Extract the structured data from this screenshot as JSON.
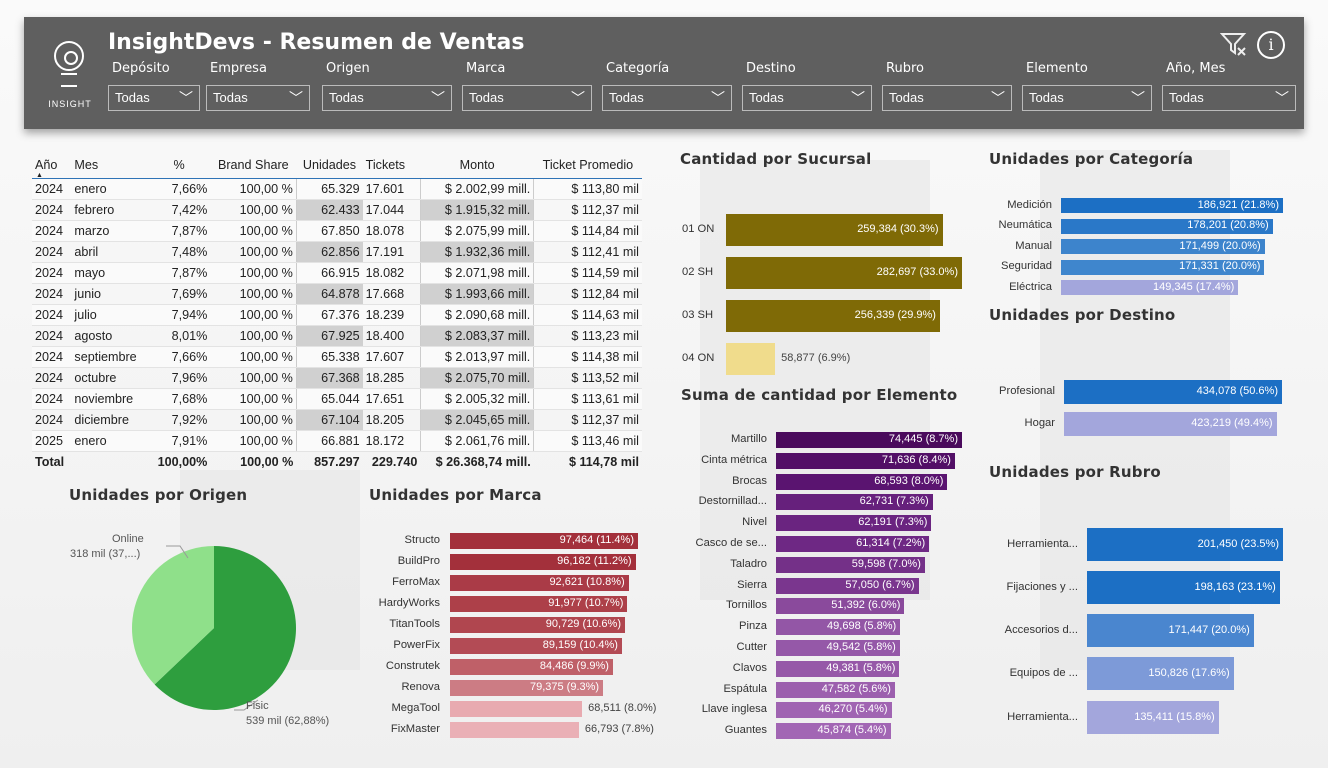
{
  "header": {
    "title": "InsightDevs - Resumen de Ventas",
    "logo_text": "INSIGHT",
    "icons": [
      "clear-filter-icon",
      "info-icon"
    ],
    "info_glyph": "i",
    "slicers": [
      {
        "label": "Depósito",
        "value": "Todas"
      },
      {
        "label": "Empresa",
        "value": "Todas"
      },
      {
        "label": "Origen",
        "value": "Todas"
      },
      {
        "label": "Marca",
        "value": "Todas"
      },
      {
        "label": "Categoría",
        "value": "Todas"
      },
      {
        "label": "Destino",
        "value": "Todas"
      },
      {
        "label": "Rubro",
        "value": "Todas"
      },
      {
        "label": "Elemento",
        "value": "Todas"
      },
      {
        "label": "Año, Mes",
        "value": "Todas"
      }
    ]
  },
  "table": {
    "columns": [
      "Año",
      "Mes",
      "%",
      "Brand Share",
      "Unidades",
      "Tickets",
      "Monto",
      "Ticket Promedio"
    ],
    "rows": [
      [
        "2024",
        "enero",
        "7,66%",
        "100,00 %",
        "65.329",
        "17.601",
        "$ 2.002,99 mill.",
        "$ 113,80 mil"
      ],
      [
        "2024",
        "febrero",
        "7,42%",
        "100,00 %",
        "62.433",
        "17.044",
        "$ 1.915,32 mill.",
        "$ 112,37 mil"
      ],
      [
        "2024",
        "marzo",
        "7,87%",
        "100,00 %",
        "67.850",
        "18.078",
        "$ 2.075,99 mill.",
        "$ 114,84 mil"
      ],
      [
        "2024",
        "abril",
        "7,48%",
        "100,00 %",
        "62.856",
        "17.191",
        "$ 1.932,36 mill.",
        "$ 112,41 mil"
      ],
      [
        "2024",
        "mayo",
        "7,87%",
        "100,00 %",
        "66.915",
        "18.082",
        "$ 2.071,98 mill.",
        "$ 114,59 mil"
      ],
      [
        "2024",
        "junio",
        "7,69%",
        "100,00 %",
        "64.878",
        "17.668",
        "$ 1.993,66 mill.",
        "$ 112,84 mil"
      ],
      [
        "2024",
        "julio",
        "7,94%",
        "100,00 %",
        "67.376",
        "18.239",
        "$ 2.090,68 mill.",
        "$ 114,63 mil"
      ],
      [
        "2024",
        "agosto",
        "8,01%",
        "100,00 %",
        "67.925",
        "18.400",
        "$ 2.083,37 mill.",
        "$ 113,23 mil"
      ],
      [
        "2024",
        "septiembre",
        "7,66%",
        "100,00 %",
        "65.338",
        "17.607",
        "$ 2.013,97 mill.",
        "$ 114,38 mil"
      ],
      [
        "2024",
        "octubre",
        "7,96%",
        "100,00 %",
        "67.368",
        "18.285",
        "$ 2.075,70 mill.",
        "$ 113,52 mil"
      ],
      [
        "2024",
        "noviembre",
        "7,68%",
        "100,00 %",
        "65.044",
        "17.651",
        "$ 2.005,32 mill.",
        "$ 113,61 mil"
      ],
      [
        "2024",
        "diciembre",
        "7,92%",
        "100,00 %",
        "67.104",
        "18.205",
        "$ 2.045,65 mill.",
        "$ 112,37 mil"
      ],
      [
        "2025",
        "enero",
        "7,91%",
        "100,00 %",
        "66.881",
        "18.172",
        "$ 2.061,76 mill.",
        "$ 113,46 mil"
      ]
    ],
    "total": [
      "Total",
      "",
      "100,00%",
      "100,00 %",
      "857.297",
      "229.740",
      "$ 26.368,74 mill.",
      "$ 114,78 mil"
    ]
  },
  "chart_data": [
    {
      "id": "sucursal",
      "type": "bar",
      "orientation": "horizontal",
      "title": "Cantidad por Sucursal",
      "categories": [
        "01 ON",
        "02 SH",
        "03 SH",
        "04 ON"
      ],
      "values": [
        259384,
        282697,
        256339,
        58877
      ],
      "labels": [
        "259,384 (30.3%)",
        "282,697 (33.0%)",
        "256,339 (29.9%)",
        "58,877 (6.9%)"
      ],
      "colors": [
        "#7f6a06",
        "#7f6a06",
        "#7f6a06",
        "#f0dc8c"
      ]
    },
    {
      "id": "elemento",
      "type": "bar",
      "orientation": "horizontal",
      "title": "Suma de cantidad por Elemento",
      "categories": [
        "Martillo",
        "Cinta métrica",
        "Brocas",
        "Destornillad...",
        "Nivel",
        "Casco de se...",
        "Taladro",
        "Sierra",
        "Tornillos",
        "Pinza",
        "Cutter",
        "Clavos",
        "Espátula",
        "Llave inglesa",
        "Guantes"
      ],
      "values": [
        74445,
        71636,
        68593,
        62731,
        62191,
        61314,
        59598,
        57050,
        51392,
        49698,
        49542,
        49381,
        47582,
        46270,
        45874
      ],
      "labels": [
        "74,445 (8.7%)",
        "71,636 (8.4%)",
        "68,593 (8.0%)",
        "62,731 (7.3%)",
        "62,191 (7.3%)",
        "61,314 (7.2%)",
        "59,598 (7.0%)",
        "57,050 (6.7%)",
        "51,392 (6.0%)",
        "49,698 (5.8%)",
        "49,542 (5.8%)",
        "49,381 (5.8%)",
        "47,582 (5.6%)",
        "46,270 (5.4%)",
        "45,874 (5.4%)"
      ],
      "colors": [
        "#4a0a5c",
        "#520f66",
        "#5a1470",
        "#66207c",
        "#6a2480",
        "#6e2884",
        "#743088",
        "#7a368e",
        "#8a4a9c",
        "#9356a6",
        "#9558a8",
        "#9658a8",
        "#9c5fae",
        "#a064b2",
        "#a266b4"
      ]
    },
    {
      "id": "categoria",
      "type": "bar",
      "orientation": "horizontal",
      "title": "Unidades por Categoría",
      "categories": [
        "Medición",
        "Neumática",
        "Manual",
        "Seguridad",
        "Eléctrica"
      ],
      "values": [
        186921,
        178201,
        171499,
        171331,
        149345
      ],
      "labels": [
        "186,921 (21.8%)",
        "178,201 (20.8%)",
        "171,499 (20.0%)",
        "171,331 (20.0%)",
        "149,345 (17.4%)"
      ],
      "colors": [
        "#1c6fc4",
        "#2a78c8",
        "#3d84cc",
        "#3f86cd",
        "#a3a6dc"
      ]
    },
    {
      "id": "destino",
      "type": "bar",
      "orientation": "horizontal",
      "title": "Unidades por Destino",
      "categories": [
        "Profesional",
        "Hogar"
      ],
      "values": [
        434078,
        423219
      ],
      "labels": [
        "434,078 (50.6%)",
        "423,219 (49.4%)"
      ],
      "colors": [
        "#1c6fc4",
        "#a3a6dc"
      ]
    },
    {
      "id": "rubro",
      "type": "bar",
      "orientation": "horizontal",
      "title": "Unidades por Rubro",
      "categories": [
        "Herramienta...",
        "Fijaciones y ...",
        "Accesorios d...",
        "Equipos de ...",
        "Herramienta..."
      ],
      "values": [
        201450,
        198163,
        171447,
        150826,
        135411
      ],
      "labels": [
        "201,450 (23.5%)",
        "198,163 (23.1%)",
        "171,447 (20.0%)",
        "150,826 (17.6%)",
        "135,411 (15.8%)"
      ],
      "colors": [
        "#1c6fc4",
        "#1c6fc4",
        "#4a86cf",
        "#7d9ad8",
        "#a3a6dc"
      ]
    },
    {
      "id": "marca",
      "type": "bar",
      "orientation": "horizontal",
      "title": "Unidades por Marca",
      "categories": [
        "Structo",
        "BuildPro",
        "FerroMax",
        "HardyWorks",
        "TitanTools",
        "PowerFix",
        "Construtek",
        "Renova",
        "MegaTool",
        "FixMaster"
      ],
      "values": [
        97464,
        96182,
        92621,
        91977,
        90729,
        89159,
        84486,
        79375,
        68511,
        66793
      ],
      "labels": [
        "97,464 (11.4%)",
        "96,182 (11.2%)",
        "92,621 (10.8%)",
        "91,977 (10.7%)",
        "90,729 (10.6%)",
        "89,159 (10.4%)",
        "84,486 (9.9%)",
        "79,375 (9.3%)",
        "68,511 (8.0%)",
        "66,793 (7.8%)"
      ],
      "colors": [
        "#a3303b",
        "#a3303b",
        "#aa3b47",
        "#ad4049",
        "#b0464f",
        "#b34b55",
        "#bf6068",
        "#cc7c84",
        "#e8aab0",
        "#eab0b6"
      ]
    },
    {
      "id": "origen",
      "type": "pie",
      "title": "Unidades por Origen",
      "categories": [
        "Online",
        "Fisic"
      ],
      "values": [
        318,
        539
      ],
      "labels": [
        "318 mil (37,...)",
        "539 mil (62,88%)"
      ],
      "colors": [
        "#8fe08a",
        "#2e9e3e"
      ]
    }
  ]
}
